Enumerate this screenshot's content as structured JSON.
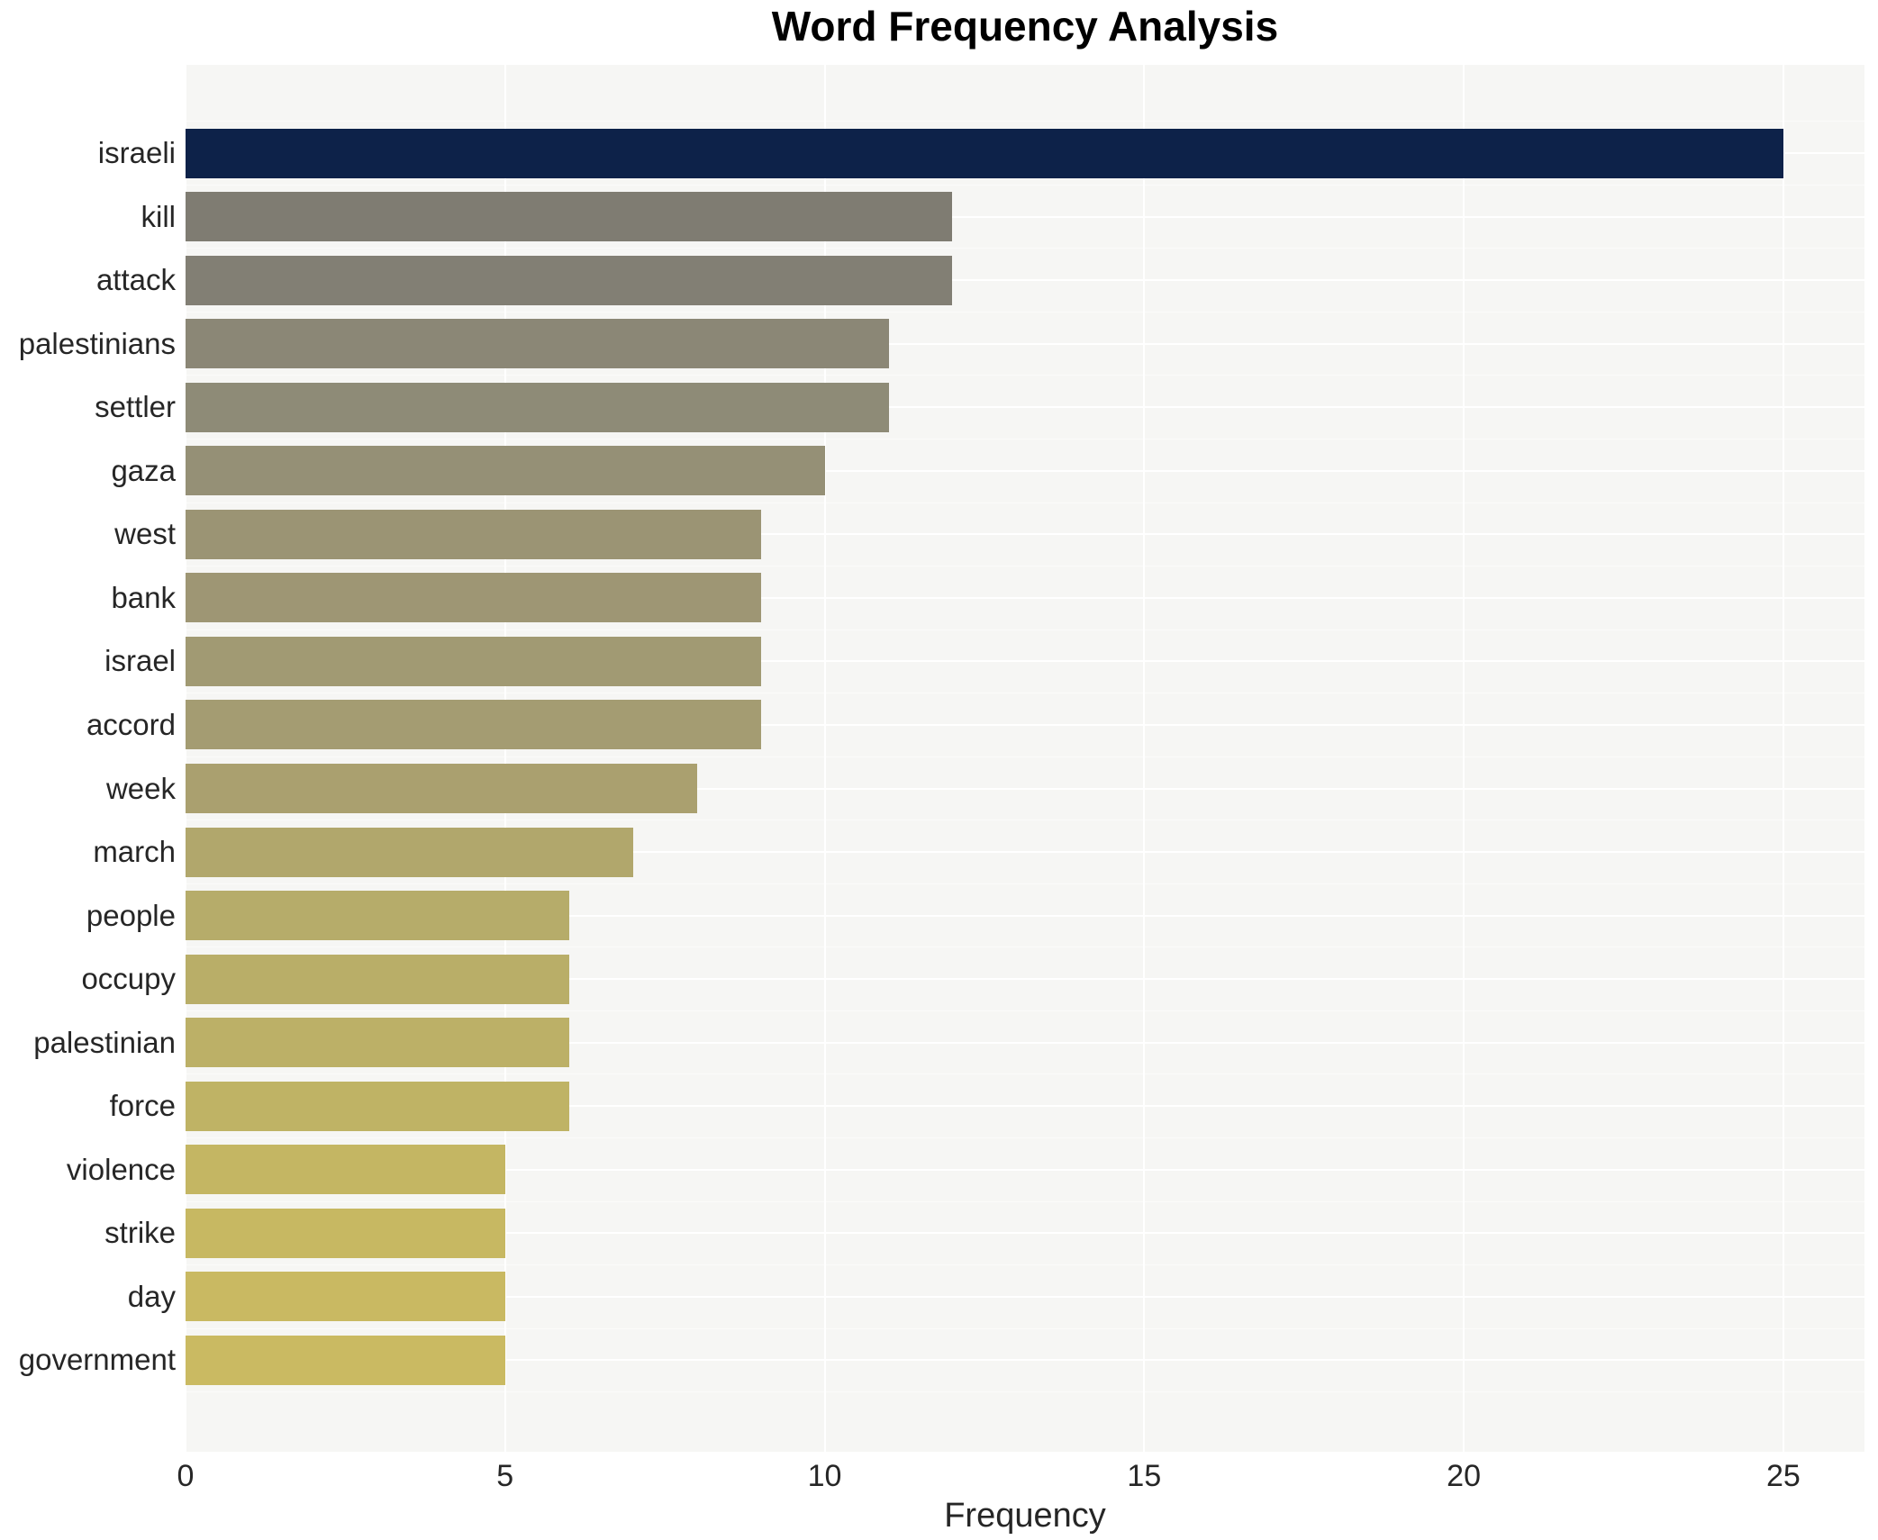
{
  "chart_data": {
    "type": "bar",
    "orientation": "horizontal",
    "title": "Word Frequency Analysis",
    "xlabel": "Frequency",
    "ylabel": "",
    "categories": [
      "israeli",
      "kill",
      "attack",
      "palestinians",
      "settler",
      "gaza",
      "west",
      "bank",
      "israel",
      "accord",
      "week",
      "march",
      "people",
      "occupy",
      "palestinian",
      "force",
      "violence",
      "strike",
      "day",
      "government"
    ],
    "values": [
      25,
      12,
      12,
      11,
      11,
      10,
      9,
      9,
      9,
      9,
      8,
      7,
      6,
      6,
      6,
      6,
      5,
      5,
      5,
      5
    ],
    "bar_colors": [
      "#0d2249",
      "#7f7c72",
      "#827f74",
      "#8b8776",
      "#8e8b77",
      "#959076",
      "#9b9474",
      "#9e9674",
      "#a19a73",
      "#a49c72",
      "#aaa06f",
      "#b1a76c",
      "#b6ac6a",
      "#b9ae68",
      "#bcb067",
      "#bfb365",
      "#c4b663",
      "#c7b862",
      "#c9b962",
      "#caba62"
    ],
    "xticks": [
      0,
      5,
      10,
      15,
      20,
      25
    ],
    "xlim": [
      0,
      26.27
    ],
    "grid": true,
    "legend": "none",
    "plot_background": "#f6f6f4",
    "grid_color": "#ffffff",
    "text_color": "#262626",
    "title_color": "#000000"
  }
}
